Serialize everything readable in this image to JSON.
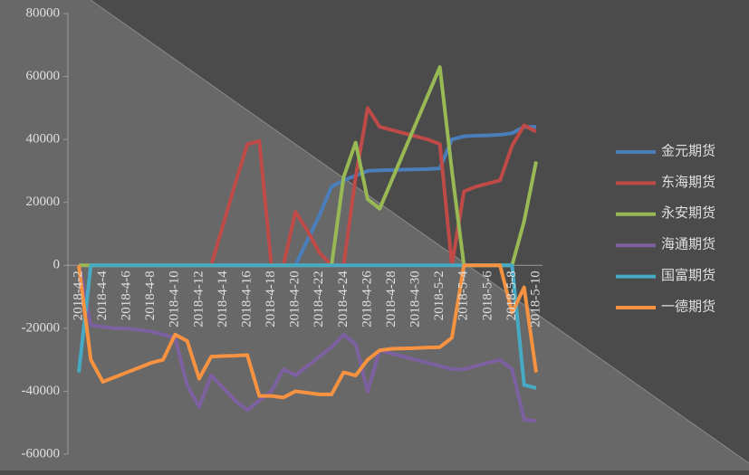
{
  "chart_data": {
    "type": "line",
    "categories": [
      "2018-4-2",
      null,
      "2018-4-4",
      null,
      "2018-4-6",
      null,
      "2018-4-8",
      null,
      "2018-4-10",
      null,
      "2018-4-12",
      null,
      "2018-4-14",
      null,
      "2018-4-16",
      null,
      "2018-4-18",
      null,
      "2018-4-20",
      null,
      "2018-4-22",
      null,
      "2018-4-24",
      null,
      "2018-4-26",
      null,
      "2018-4-28",
      null,
      "2018-4-30",
      null,
      "2018-5-2",
      null,
      "2018-5-4",
      null,
      "2018-5-6",
      null,
      "2018-5-8",
      null,
      "2018-5-10"
    ],
    "series": [
      {
        "name": "金元期货",
        "color": "#4a7ebb",
        "values": [
          0,
          0,
          0,
          0,
          0,
          0,
          0,
          0,
          0,
          0,
          0,
          0,
          0,
          0,
          0,
          0,
          0,
          0,
          0,
          8000,
          16000,
          25000,
          27000,
          28500,
          30000,
          30200,
          30300,
          30400,
          30500,
          30600,
          30800,
          40000,
          41000,
          41200,
          41300,
          41500,
          42000,
          44000,
          44000
        ]
      },
      {
        "name": "东海期货",
        "color": "#be4b48",
        "values": [
          0,
          0,
          0,
          0,
          0,
          0,
          0,
          0,
          0,
          0,
          0,
          0,
          13000,
          26000,
          38500,
          39500,
          0,
          0,
          17000,
          11000,
          4000,
          0,
          0,
          28000,
          50000,
          44000,
          43000,
          42000,
          41000,
          40000,
          38500,
          0,
          23500,
          25000,
          26000,
          27000,
          38000,
          44500,
          42500
        ]
      },
      {
        "name": "永安期货",
        "color": "#98b954",
        "values": [
          0,
          0,
          0,
          0,
          0,
          0,
          0,
          0,
          0,
          0,
          0,
          0,
          0,
          0,
          0,
          0,
          0,
          0,
          0,
          0,
          0,
          0,
          28000,
          39000,
          21000,
          18000,
          27000,
          36000,
          45000,
          54000,
          63000,
          30000,
          0,
          0,
          0,
          0,
          0,
          14000,
          33000
        ]
      },
      {
        "name": "海通期货",
        "color": "#7d60a0",
        "values": [
          0,
          -19000,
          -19500,
          -20000,
          -20000,
          -20500,
          -21000,
          -22000,
          -23000,
          -38000,
          -45000,
          -35000,
          -39000,
          -43000,
          -46000,
          -43000,
          -40000,
          -33000,
          -35000,
          -32000,
          -29000,
          -26000,
          -22000,
          -25000,
          -40000,
          -27000,
          -28000,
          -29000,
          -30000,
          -31000,
          -32000,
          -33000,
          -33000,
          -32000,
          -31000,
          -30000,
          -33000,
          -49000,
          -49500
        ]
      },
      {
        "name": "国富期货",
        "color": "#46aac5",
        "values": [
          -34000,
          0,
          0,
          0,
          0,
          0,
          0,
          0,
          0,
          0,
          0,
          0,
          0,
          0,
          0,
          0,
          0,
          0,
          0,
          0,
          0,
          0,
          0,
          0,
          0,
          0,
          0,
          0,
          0,
          0,
          0,
          0,
          0,
          0,
          0,
          0,
          0,
          -38000,
          -39000
        ]
      },
      {
        "name": "一德期货",
        "color": "#f69240",
        "values": [
          0,
          -30000,
          -37000,
          -35500,
          -34000,
          -32500,
          -31000,
          -30000,
          -22000,
          -24000,
          -36000,
          -29000,
          -28800,
          -28700,
          -28500,
          -41500,
          -41500,
          -42000,
          -40000,
          -40500,
          -41000,
          -41000,
          -34000,
          -35000,
          -30000,
          -27000,
          -26500,
          -26400,
          -26300,
          -26100,
          -26000,
          -23000,
          0,
          0,
          0,
          0,
          -15000,
          -7000,
          -34000
        ]
      }
    ],
    "ylim": [
      -60000,
      80000
    ],
    "yticks": [
      -60000,
      -40000,
      -20000,
      0,
      20000,
      40000,
      60000,
      80000
    ],
    "legend": "right"
  }
}
